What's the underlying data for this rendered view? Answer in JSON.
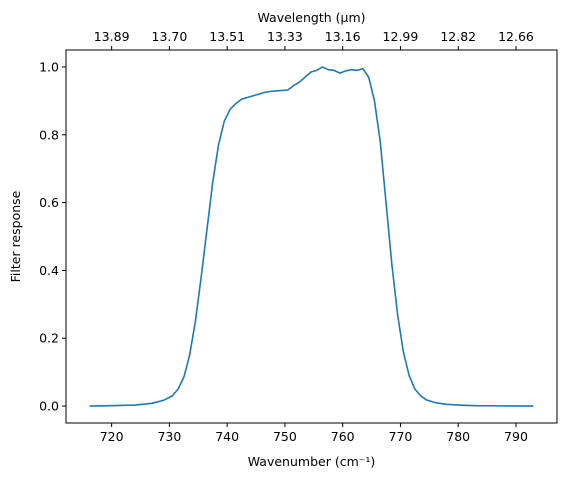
{
  "chart_data": {
    "type": "line",
    "xlabel": "Wavenumber (cm⁻¹)",
    "ylabel": "Filter response",
    "top_xlabel": "Wavelength (μm)",
    "xlim": [
      712.1,
      797.1
    ],
    "ylim": [
      -0.05,
      1.05
    ],
    "x_ticks": [
      720,
      730,
      740,
      750,
      760,
      770,
      780,
      790
    ],
    "x_tick_labels": [
      "720",
      "730",
      "740",
      "750",
      "760",
      "770",
      "780",
      "790"
    ],
    "y_ticks": [
      0.0,
      0.2,
      0.4,
      0.6,
      0.8,
      1.0
    ],
    "y_tick_labels": [
      "0.0",
      "0.2",
      "0.4",
      "0.6",
      "0.8",
      "1.0"
    ],
    "top_ticks": [
      720,
      730,
      740,
      750,
      760,
      770,
      780,
      790
    ],
    "top_tick_labels": [
      "13.89",
      "13.70",
      "13.51",
      "13.33",
      "13.16",
      "12.99",
      "12.82",
      "12.66"
    ],
    "grid": false,
    "series": [
      {
        "color": "#1f77b4",
        "x": [
          716.2,
          720,
          724,
          727,
          729,
          730.5,
          731.5,
          732.5,
          733.5,
          734.5,
          735.5,
          736.5,
          737.5,
          738.5,
          739.5,
          740.5,
          741.5,
          742.5,
          743.5,
          744.5,
          745.5,
          746.5,
          747.5,
          749,
          750.5,
          751.5,
          752.5,
          753.5,
          754.5,
          755.5,
          756.5,
          757.5,
          758.5,
          759.5,
          760.5,
          761.5,
          762.5,
          763.5,
          764.5,
          765.5,
          766.5,
          767.5,
          768.5,
          769.5,
          770.5,
          771.5,
          772.5,
          773.5,
          774.5,
          776,
          778,
          780,
          783,
          787,
          793
        ],
        "y": [
          0.0,
          0.001,
          0.003,
          0.008,
          0.017,
          0.03,
          0.05,
          0.085,
          0.15,
          0.25,
          0.38,
          0.52,
          0.66,
          0.77,
          0.84,
          0.875,
          0.892,
          0.905,
          0.91,
          0.915,
          0.92,
          0.925,
          0.928,
          0.93,
          0.932,
          0.945,
          0.955,
          0.97,
          0.985,
          0.99,
          1.0,
          0.992,
          0.99,
          0.982,
          0.988,
          0.992,
          0.99,
          0.995,
          0.97,
          0.9,
          0.78,
          0.6,
          0.42,
          0.27,
          0.16,
          0.09,
          0.05,
          0.03,
          0.018,
          0.01,
          0.005,
          0.003,
          0.001,
          0.0005,
          0.0
        ]
      }
    ]
  }
}
